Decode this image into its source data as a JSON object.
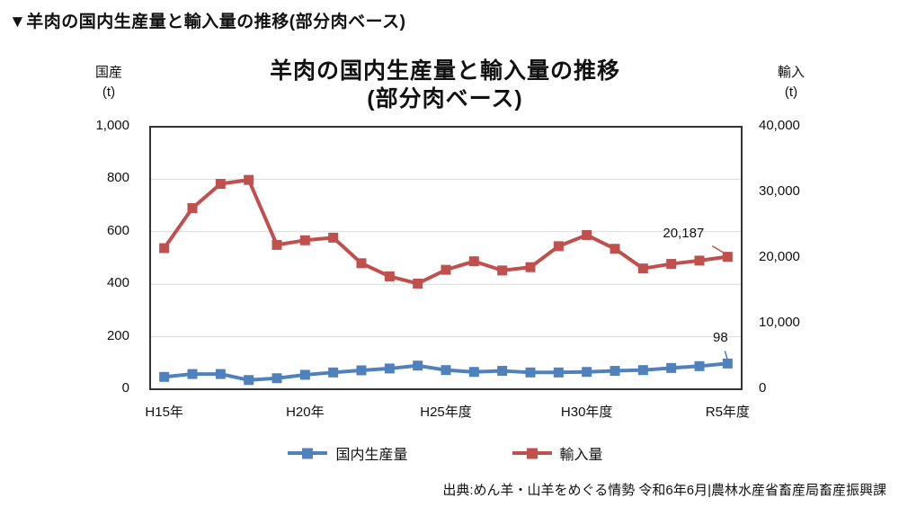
{
  "page": {
    "heading": "▼羊肉の国内生産量と輸入量の推移(部分肉ベース)",
    "source": "出典:めん羊・山羊をめぐる情勢 令和6年6月|農林水産省畜産局畜産振興課"
  },
  "chart_data": {
    "type": "line",
    "title_line1": "羊肉の国内生産量と輸入量の推移",
    "title_line2": "(部分肉ベース)",
    "grid": {
      "color": "#d9d9d9",
      "border_color": "#333333",
      "source_axis": "left"
    },
    "left_axis": {
      "title": "国産",
      "unit": "(t)",
      "min": 0,
      "max": 1000,
      "ticks": [
        {
          "label": "1,000",
          "value": 1000
        },
        {
          "label": "800",
          "value": 800
        },
        {
          "label": "600",
          "value": 600
        },
        {
          "label": "400",
          "value": 400
        },
        {
          "label": "200",
          "value": 200
        },
        {
          "label": "0",
          "value": 0
        }
      ]
    },
    "right_axis": {
      "title": "輸入",
      "unit": "(t)",
      "min": 0,
      "max": 40000,
      "ticks": [
        {
          "label": "40,000",
          "value": 40000
        },
        {
          "label": "30,000",
          "value": 30000
        },
        {
          "label": "20,000",
          "value": 20000
        },
        {
          "label": "10,000",
          "value": 10000
        },
        {
          "label": "0",
          "value": 0
        }
      ]
    },
    "x_axis": {
      "category_count": 21,
      "tick_labels": [
        {
          "label": "H15年",
          "index": 0
        },
        {
          "label": "H20年",
          "index": 5
        },
        {
          "label": "H25年度",
          "index": 10
        },
        {
          "label": "H30年度",
          "index": 15
        },
        {
          "label": "R5年度",
          "index": 20
        }
      ]
    },
    "series": [
      {
        "name": "国内生産量",
        "axis": "left",
        "color": "#4f81bd",
        "marker": "square",
        "values": [
          47,
          58,
          58,
          35,
          42,
          55,
          64,
          72,
          79,
          90,
          73,
          66,
          70,
          64,
          64,
          66,
          70,
          73,
          81,
          88,
          98
        ],
        "last_point_label": "98"
      },
      {
        "name": "輸入量",
        "axis": "right",
        "color": "#c0504d",
        "marker": "square",
        "values": [
          21500,
          27600,
          31300,
          31900,
          22000,
          22700,
          23100,
          19200,
          17200,
          16100,
          18200,
          19500,
          18100,
          18600,
          21800,
          23500,
          21400,
          18400,
          19100,
          19600,
          20187
        ],
        "last_point_label": "20,187"
      }
    ],
    "legend_position": "bottom"
  }
}
